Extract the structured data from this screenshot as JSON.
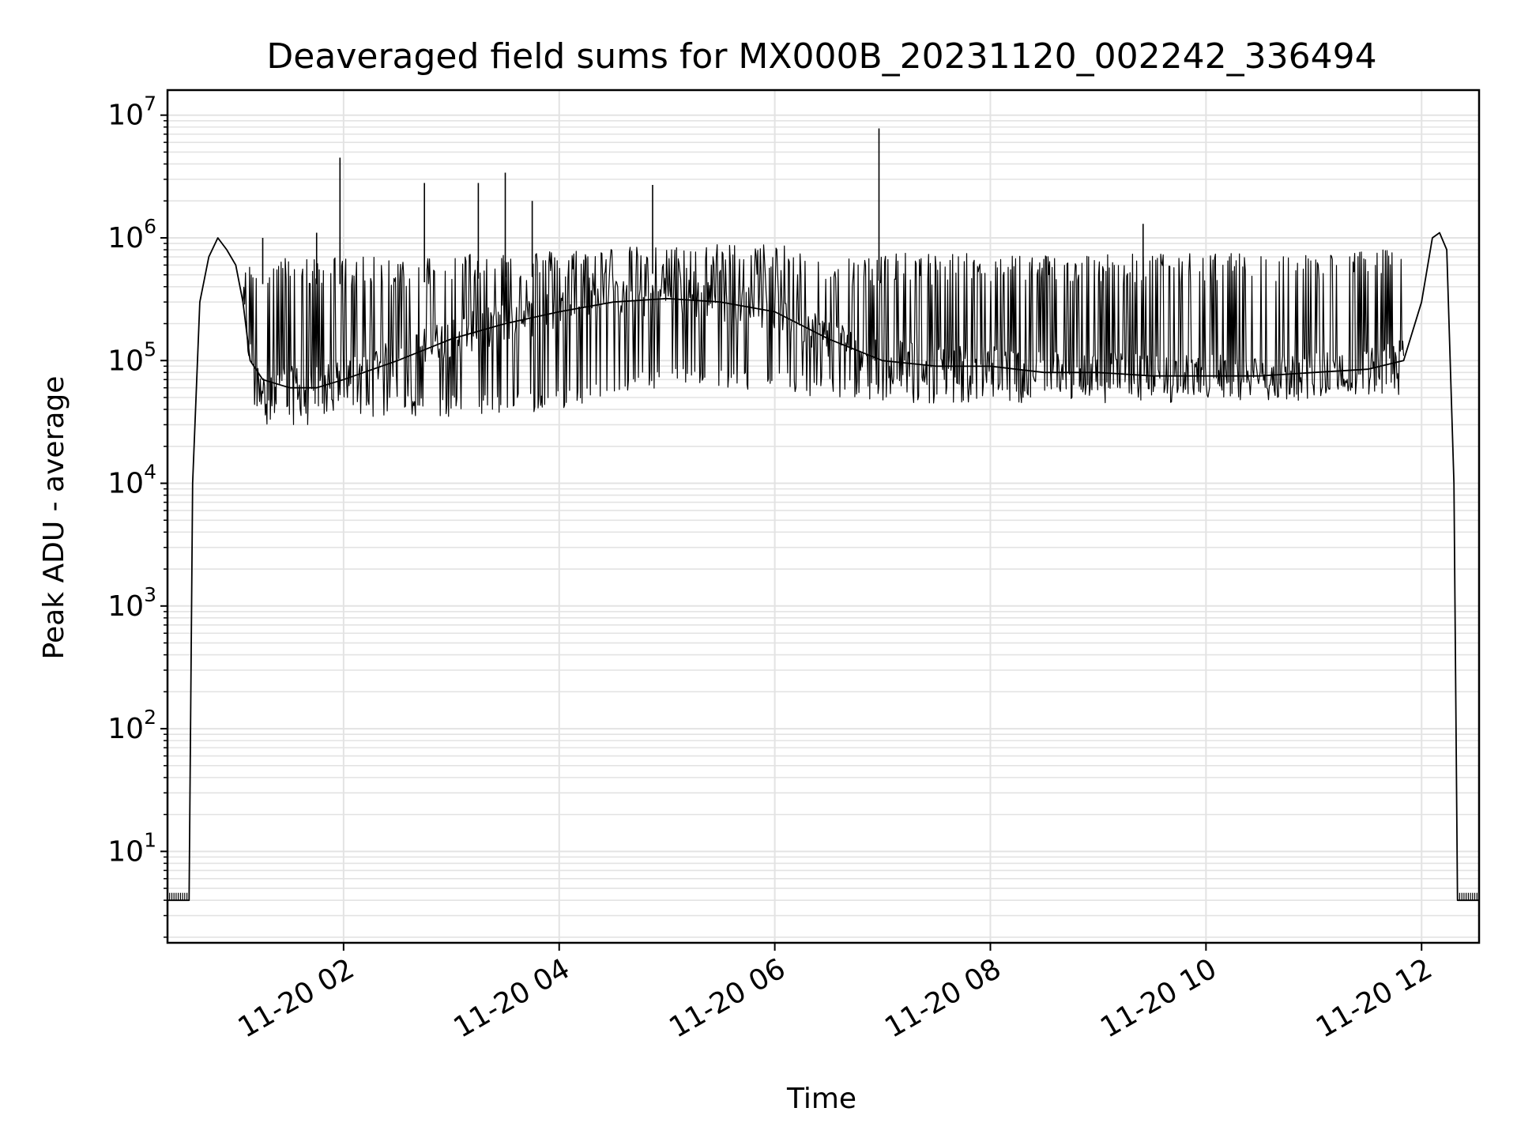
{
  "chart_data": {
    "type": "line",
    "title": "Deaveraged field sums for MX000B_20231120_002242_336494",
    "xlabel": "Time",
    "ylabel": "Peak ADU - average",
    "yscale": "log",
    "ylim": [
      1.8,
      16000000
    ],
    "xlim": [
      "2023-11-20 00:22",
      "2023-11-20 12:32"
    ],
    "grid": true,
    "legend": "none",
    "line_color": "#000000",
    "x_ticks": [
      "11-20 02",
      "11-20 04",
      "11-20 06",
      "11-20 08",
      "11-20 10",
      "11-20 12"
    ],
    "y_ticks": [
      {
        "base": "10",
        "exp": "1",
        "value": 10
      },
      {
        "base": "10",
        "exp": "2",
        "value": 100
      },
      {
        "base": "10",
        "exp": "3",
        "value": 1000
      },
      {
        "base": "10",
        "exp": "4",
        "value": 10000
      },
      {
        "base": "10",
        "exp": "5",
        "value": 100000
      },
      {
        "base": "10",
        "exp": "6",
        "value": 1000000
      },
      {
        "base": "10",
        "exp": "7",
        "value": 10000000
      }
    ],
    "series": [
      {
        "x": [
          "2023-11-20 00:22",
          "2023-11-20 00:34",
          "2023-11-20 00:36",
          "2023-11-20 00:40",
          "2023-11-20 00:45",
          "2023-11-20 00:50",
          "2023-11-20 00:55",
          "2023-11-20 01:00",
          "2023-11-20 01:04",
          "2023-11-20 01:08",
          "2023-11-20 01:15",
          "2023-11-20 01:30",
          "2023-11-20 01:45",
          "2023-11-20 02:00",
          "2023-11-20 02:30",
          "2023-11-20 03:00",
          "2023-11-20 03:30",
          "2023-11-20 04:00",
          "2023-11-20 04:30",
          "2023-11-20 05:00",
          "2023-11-20 05:30",
          "2023-11-20 06:00",
          "2023-11-20 06:30",
          "2023-11-20 07:00",
          "2023-11-20 07:30",
          "2023-11-20 08:00",
          "2023-11-20 08:30",
          "2023-11-20 09:00",
          "2023-11-20 09:30",
          "2023-11-20 10:00",
          "2023-11-20 10:30",
          "2023-11-20 11:00",
          "2023-11-20 11:30",
          "2023-11-20 11:50",
          "2023-11-20 12:00",
          "2023-11-20 12:06",
          "2023-11-20 12:10",
          "2023-11-20 12:14",
          "2023-11-20 12:18",
          "2023-11-20 12:20",
          "2023-11-20 12:32"
        ],
        "y": [
          4,
          4,
          10000,
          300000,
          700000,
          1000000,
          800000,
          600000,
          300000,
          100000,
          70000,
          60000,
          60000,
          70000,
          100000,
          150000,
          200000,
          250000,
          300000,
          320000,
          300000,
          250000,
          150000,
          100000,
          90000,
          90000,
          80000,
          80000,
          75000,
          75000,
          75000,
          80000,
          85000,
          100000,
          300000,
          1000000,
          1100000,
          800000,
          10000,
          4,
          4
        ],
        "y_min": [
          4,
          4,
          10000,
          300000,
          700000,
          1000000,
          800000,
          600000,
          200000,
          40000,
          30000,
          30000,
          30000,
          35000,
          35000,
          35000,
          35000,
          40000,
          50000,
          60000,
          60000,
          55000,
          50000,
          45000,
          45000,
          45000,
          45000,
          45000,
          45000,
          45000,
          45000,
          45000,
          50000,
          50000,
          300000,
          1000000,
          1100000,
          800000,
          10000,
          4,
          4
        ],
        "y_max": [
          4,
          4,
          10000,
          300000,
          700000,
          1000000,
          800000,
          600000,
          500000,
          650000,
          700000,
          700000,
          700000,
          700000,
          700000,
          750000,
          800000,
          800000,
          850000,
          850000,
          900000,
          900000,
          700000,
          750000,
          750000,
          750000,
          750000,
          750000,
          750000,
          750000,
          750000,
          750000,
          800000,
          800000,
          300000,
          1000000,
          1100000,
          800000,
          10000,
          4,
          4
        ],
        "spikes": [
          {
            "x": "2023-11-20 01:15",
            "y": 1000000
          },
          {
            "x": "2023-11-20 01:45",
            "y": 1100000
          },
          {
            "x": "2023-11-20 01:58",
            "y": 4500000
          },
          {
            "x": "2023-11-20 02:45",
            "y": 2800000
          },
          {
            "x": "2023-11-20 03:15",
            "y": 2800000
          },
          {
            "x": "2023-11-20 03:30",
            "y": 3400000
          },
          {
            "x": "2023-11-20 03:45",
            "y": 2000000
          },
          {
            "x": "2023-11-20 04:52",
            "y": 2700000
          },
          {
            "x": "2023-11-20 06:58",
            "y": 7800000
          },
          {
            "x": "2023-11-20 09:25",
            "y": 1300000
          }
        ]
      }
    ]
  }
}
